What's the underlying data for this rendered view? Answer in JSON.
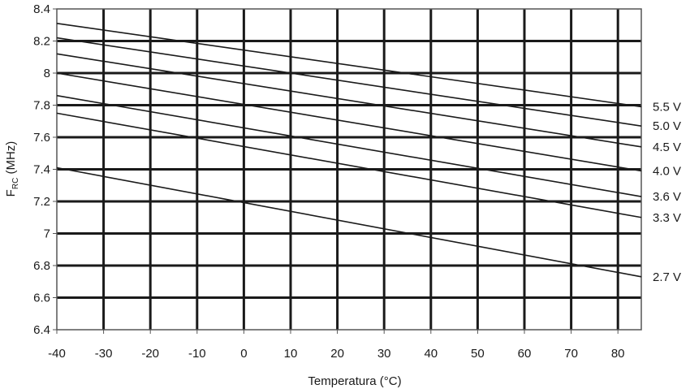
{
  "chart_data": {
    "type": "line",
    "title": "",
    "xlabel": "Temperatura (°C)",
    "ylabel": {
      "main": "F",
      "sub": "RC",
      "rest": " (MHz)"
    },
    "xlim": [
      -40,
      85
    ],
    "ylim": [
      6.4,
      8.4
    ],
    "grid": true,
    "x_ticks": [
      "-40",
      "-30",
      "-20",
      "-10",
      "0",
      "10",
      "20",
      "30",
      "40",
      "50",
      "60",
      "70",
      "80"
    ],
    "y_ticks": [
      "6.4",
      "6.6",
      "6.8",
      "7",
      "7.2",
      "7.4",
      "7.6",
      "7.8",
      "8",
      "8.2",
      "8.4"
    ],
    "series": [
      {
        "name": "5.5 V",
        "x": [
          -40,
          85
        ],
        "y": [
          8.31,
          7.79
        ]
      },
      {
        "name": "5.0 V",
        "x": [
          -40,
          85
        ],
        "y": [
          8.22,
          7.67
        ]
      },
      {
        "name": "4.5 V",
        "x": [
          -40,
          85
        ],
        "y": [
          8.12,
          7.54
        ]
      },
      {
        "name": "4.0 V",
        "x": [
          -40,
          85
        ],
        "y": [
          8.0,
          7.39
        ]
      },
      {
        "name": "3.6 V",
        "x": [
          -40,
          85
        ],
        "y": [
          7.86,
          7.23
        ]
      },
      {
        "name": "3.3 V",
        "x": [
          -40,
          85
        ],
        "y": [
          7.75,
          7.1
        ]
      },
      {
        "name": "2.7 V",
        "x": [
          -40,
          85
        ],
        "y": [
          7.41,
          6.73
        ]
      }
    ],
    "colors": {
      "line": "#1a1a1a",
      "grid": "#1a1a1a",
      "border": "#555555"
    }
  }
}
